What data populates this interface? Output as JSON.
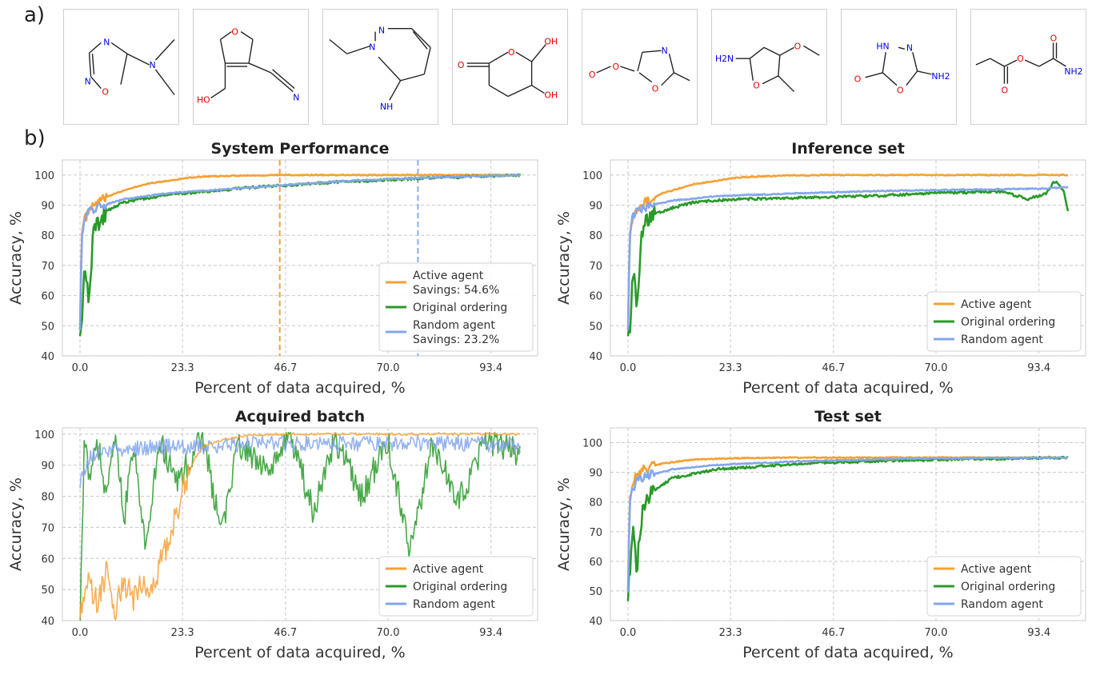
{
  "panel_labels": {
    "a": "a)",
    "b": "b)"
  },
  "molecules": [
    {
      "name": "dimethylamino-oxadiazole",
      "atoms": [
        "N",
        "N",
        "O",
        "N"
      ]
    },
    {
      "name": "hydroxymethyl-dihydrofuran-carbonitrile",
      "atoms": [
        "O",
        "HO",
        "N"
      ]
    },
    {
      "name": "ethyl-imino-pyridazine",
      "atoms": [
        "N",
        "N",
        "NH"
      ]
    },
    {
      "name": "dihydroxy-pyranone",
      "atoms": [
        "O",
        "O",
        "OH",
        "OH"
      ]
    },
    {
      "name": "oxazolyl-formate",
      "atoms": [
        "O",
        "O",
        "N",
        "O"
      ]
    },
    {
      "name": "amino-methoxy-methylfuran",
      "atoms": [
        "H2N",
        "O",
        "O"
      ]
    },
    {
      "name": "amino-oxadiazolone",
      "atoms": [
        "HN",
        "N",
        "O",
        "O",
        "NH2"
      ]
    },
    {
      "name": "carbamoylmethyl-propanoate",
      "atoms": [
        "O",
        "O",
        "O",
        "NH2"
      ]
    }
  ],
  "chart_data": [
    {
      "type": "line",
      "title": "System Performance",
      "xlabel": "Percent of data acquired, %",
      "ylabel": "Accuracy, %",
      "xticks": [
        "0.0",
        "23.3",
        "46.7",
        "70.0",
        "93.4"
      ],
      "yticks": [
        "40",
        "50",
        "60",
        "70",
        "80",
        "90",
        "100"
      ],
      "xlim": [
        -4,
        104
      ],
      "ylim": [
        40,
        105
      ],
      "vlines": [
        {
          "x": 45.4,
          "color": "#f5a03c"
        },
        {
          "x": 76.8,
          "color": "#8aaaf0"
        }
      ],
      "series": [
        {
          "name": "Active agent",
          "color": "#f7a035",
          "points": [
            [
              0,
              50
            ],
            [
              0.4,
              80
            ],
            [
              1,
              85
            ],
            [
              2,
              88
            ],
            [
              4,
              91
            ],
            [
              8,
              94
            ],
            [
              15,
              97
            ],
            [
              25,
              99.2
            ],
            [
              35,
              99.8
            ],
            [
              45,
              100
            ],
            [
              100,
              100
            ]
          ]
        },
        {
          "name": "Original ordering",
          "color": "#2a9a2a",
          "points": [
            [
              0,
              50
            ],
            [
              0.5,
              49
            ],
            [
              1,
              70
            ],
            [
              2,
              60
            ],
            [
              3,
              80
            ],
            [
              4,
              84
            ],
            [
              6,
              88
            ],
            [
              10,
              91
            ],
            [
              20,
              93.5
            ],
            [
              40,
              96
            ],
            [
              60,
              97.8
            ],
            [
              80,
              99
            ],
            [
              100,
              100
            ]
          ]
        },
        {
          "name": "Random agent",
          "color": "#84a6ec",
          "points": [
            [
              0,
              50
            ],
            [
              0.4,
              80
            ],
            [
              1,
              86
            ],
            [
              2,
              88
            ],
            [
              5,
              90
            ],
            [
              10,
              92
            ],
            [
              20,
              94
            ],
            [
              40,
              96
            ],
            [
              60,
              98
            ],
            [
              80,
              99.2
            ],
            [
              100,
              100
            ]
          ]
        }
      ],
      "legend": [
        {
          "label": "Active agent",
          "sub": "Savings: 54.6%"
        },
        {
          "label": "Original ordering",
          "sub": ""
        },
        {
          "label": "Random agent",
          "sub": "Savings: 23.2%"
        }
      ],
      "legend_pos": "lower-right"
    },
    {
      "type": "line",
      "title": "Inference set",
      "xlabel": "Percent of data acquired, %",
      "ylabel": "Accuracy, %",
      "xticks": [
        "0.0",
        "23.3",
        "46.7",
        "70.0",
        "93.4"
      ],
      "yticks": [
        "40",
        "50",
        "60",
        "70",
        "80",
        "90",
        "100"
      ],
      "xlim": [
        -4,
        104
      ],
      "ylim": [
        40,
        105
      ],
      "vlines": [],
      "series": [
        {
          "name": "Active agent",
          "color": "#f7a035",
          "points": [
            [
              0,
              50
            ],
            [
              0.4,
              80
            ],
            [
              1,
              85
            ],
            [
              2,
              88
            ],
            [
              4,
              91
            ],
            [
              8,
              94
            ],
            [
              15,
              97
            ],
            [
              25,
              99.2
            ],
            [
              35,
              99.8
            ],
            [
              45,
              100
            ],
            [
              100,
              100
            ]
          ]
        },
        {
          "name": "Original ordering",
          "color": "#2a9a2a",
          "points": [
            [
              0,
              50
            ],
            [
              0.5,
              49
            ],
            [
              1,
              70
            ],
            [
              2,
              58
            ],
            [
              3,
              78
            ],
            [
              4,
              83
            ],
            [
              6,
              87
            ],
            [
              10,
              89
            ],
            [
              15,
              91
            ],
            [
              25,
              92
            ],
            [
              40,
              92.5
            ],
            [
              55,
              93
            ],
            [
              70,
              94
            ],
            [
              85,
              94.5
            ],
            [
              91,
              92
            ],
            [
              95,
              94
            ],
            [
              97,
              98
            ],
            [
              99,
              95
            ],
            [
              100,
              88
            ]
          ]
        },
        {
          "name": "Random agent",
          "color": "#84a6ec",
          "points": [
            [
              0,
              50
            ],
            [
              0.4,
              80
            ],
            [
              1,
              86
            ],
            [
              2,
              88
            ],
            [
              5,
              90
            ],
            [
              10,
              91.5
            ],
            [
              20,
              93
            ],
            [
              40,
              94
            ],
            [
              60,
              94.8
            ],
            [
              80,
              95.2
            ],
            [
              95,
              95.5
            ],
            [
              100,
              96
            ]
          ]
        }
      ],
      "legend": [
        {
          "label": "Active agent",
          "sub": ""
        },
        {
          "label": "Original ordering",
          "sub": ""
        },
        {
          "label": "Random agent",
          "sub": ""
        }
      ],
      "legend_pos": "lower-right"
    },
    {
      "type": "line",
      "title": "Acquired batch",
      "xlabel": "Percent of data acquired, %",
      "ylabel": "Accuracy, %",
      "xticks": [
        "0.0",
        "23.3",
        "46.7",
        "70.0",
        "93.4"
      ],
      "yticks": [
        "40",
        "50",
        "60",
        "70",
        "80",
        "90",
        "100"
      ],
      "xlim": [
        -4,
        104
      ],
      "ylim": [
        40,
        102
      ],
      "vlines": [],
      "series": [
        {
          "name": "Original ordering",
          "color": "#2a9a2a",
          "points": [
            [
              0,
              40
            ],
            [
              1,
              98
            ],
            [
              2,
              85
            ],
            [
              4,
              97
            ],
            [
              6,
              80
            ],
            [
              8,
              99
            ],
            [
              10,
              72
            ],
            [
              12,
              97
            ],
            [
              15,
              62
            ],
            [
              18,
              98
            ],
            [
              22,
              85
            ],
            [
              28,
              99
            ],
            [
              32,
              68
            ],
            [
              36,
              97
            ],
            [
              42,
              88
            ],
            [
              48,
              99
            ],
            [
              53,
              75
            ],
            [
              58,
              98
            ],
            [
              64,
              80
            ],
            [
              70,
              98
            ],
            [
              75,
              62
            ],
            [
              80,
              97
            ],
            [
              86,
              78
            ],
            [
              92,
              98
            ],
            [
              100,
              94
            ]
          ]
        },
        {
          "name": "Random agent",
          "color": "#84a6ec",
          "points": [
            [
              0,
              85
            ],
            [
              2,
              92
            ],
            [
              5,
              95
            ],
            [
              10,
              95
            ],
            [
              20,
              96
            ],
            [
              30,
              96
            ],
            [
              40,
              97
            ],
            [
              50,
              97
            ],
            [
              60,
              97
            ],
            [
              70,
              97
            ],
            [
              80,
              97
            ],
            [
              90,
              97
            ],
            [
              100,
              96
            ]
          ]
        },
        {
          "name": "Active agent",
          "color": "#f7a035",
          "points": [
            [
              0,
              45
            ],
            [
              2,
              52
            ],
            [
              4,
              45
            ],
            [
              6,
              55
            ],
            [
              8,
              44
            ],
            [
              10,
              53
            ],
            [
              12,
              47
            ],
            [
              14,
              52
            ],
            [
              16,
              48
            ],
            [
              18,
              58
            ],
            [
              20,
              65
            ],
            [
              22,
              75
            ],
            [
              24,
              85
            ],
            [
              26,
              92
            ],
            [
              28,
              96
            ],
            [
              32,
              98
            ],
            [
              38,
              99.5
            ],
            [
              45,
              100
            ],
            [
              100,
              100
            ]
          ]
        }
      ],
      "legend": [
        {
          "label": "Active agent",
          "sub": ""
        },
        {
          "label": "Original ordering",
          "sub": ""
        },
        {
          "label": "Random agent",
          "sub": ""
        }
      ],
      "legend_pos": "lower-right"
    },
    {
      "type": "line",
      "title": "Test set",
      "xlabel": "Percent of data acquired, %",
      "ylabel": "Accuracy, %",
      "xticks": [
        "0.0",
        "23.3",
        "46.7",
        "70.0",
        "93.4"
      ],
      "yticks": [
        "40",
        "50",
        "60",
        "70",
        "80",
        "90",
        "100"
      ],
      "xlim": [
        -4,
        104
      ],
      "ylim": [
        40,
        105
      ],
      "vlines": [],
      "series": [
        {
          "name": "Active agent",
          "color": "#f7a035",
          "points": [
            [
              0,
              51
            ],
            [
              0.4,
              80
            ],
            [
              1,
              86
            ],
            [
              2,
              89
            ],
            [
              4,
              91.5
            ],
            [
              8,
              93
            ],
            [
              15,
              94.3
            ],
            [
              25,
              94.8
            ],
            [
              40,
              95
            ],
            [
              100,
              95
            ]
          ]
        },
        {
          "name": "Original ordering",
          "color": "#2a9a2a",
          "points": [
            [
              0,
              50
            ],
            [
              0.6,
              60
            ],
            [
              1,
              72
            ],
            [
              2,
              57
            ],
            [
              3,
              75
            ],
            [
              4,
              80
            ],
            [
              6,
              84
            ],
            [
              10,
              88
            ],
            [
              20,
              91
            ],
            [
              40,
              93
            ],
            [
              60,
              94
            ],
            [
              80,
              94.5
            ],
            [
              100,
              95
            ]
          ]
        },
        {
          "name": "Random agent",
          "color": "#84a6ec",
          "points": [
            [
              0,
              51
            ],
            [
              0.4,
              80
            ],
            [
              1,
              84
            ],
            [
              2,
              87
            ],
            [
              5,
              89
            ],
            [
              10,
              91
            ],
            [
              20,
              92.5
            ],
            [
              40,
              93.8
            ],
            [
              60,
              94.5
            ],
            [
              80,
              94.8
            ],
            [
              100,
              95
            ]
          ]
        }
      ],
      "legend": [
        {
          "label": "Active agent",
          "sub": ""
        },
        {
          "label": "Original ordering",
          "sub": ""
        },
        {
          "label": "Random agent",
          "sub": ""
        }
      ],
      "legend_pos": "lower-right"
    }
  ]
}
